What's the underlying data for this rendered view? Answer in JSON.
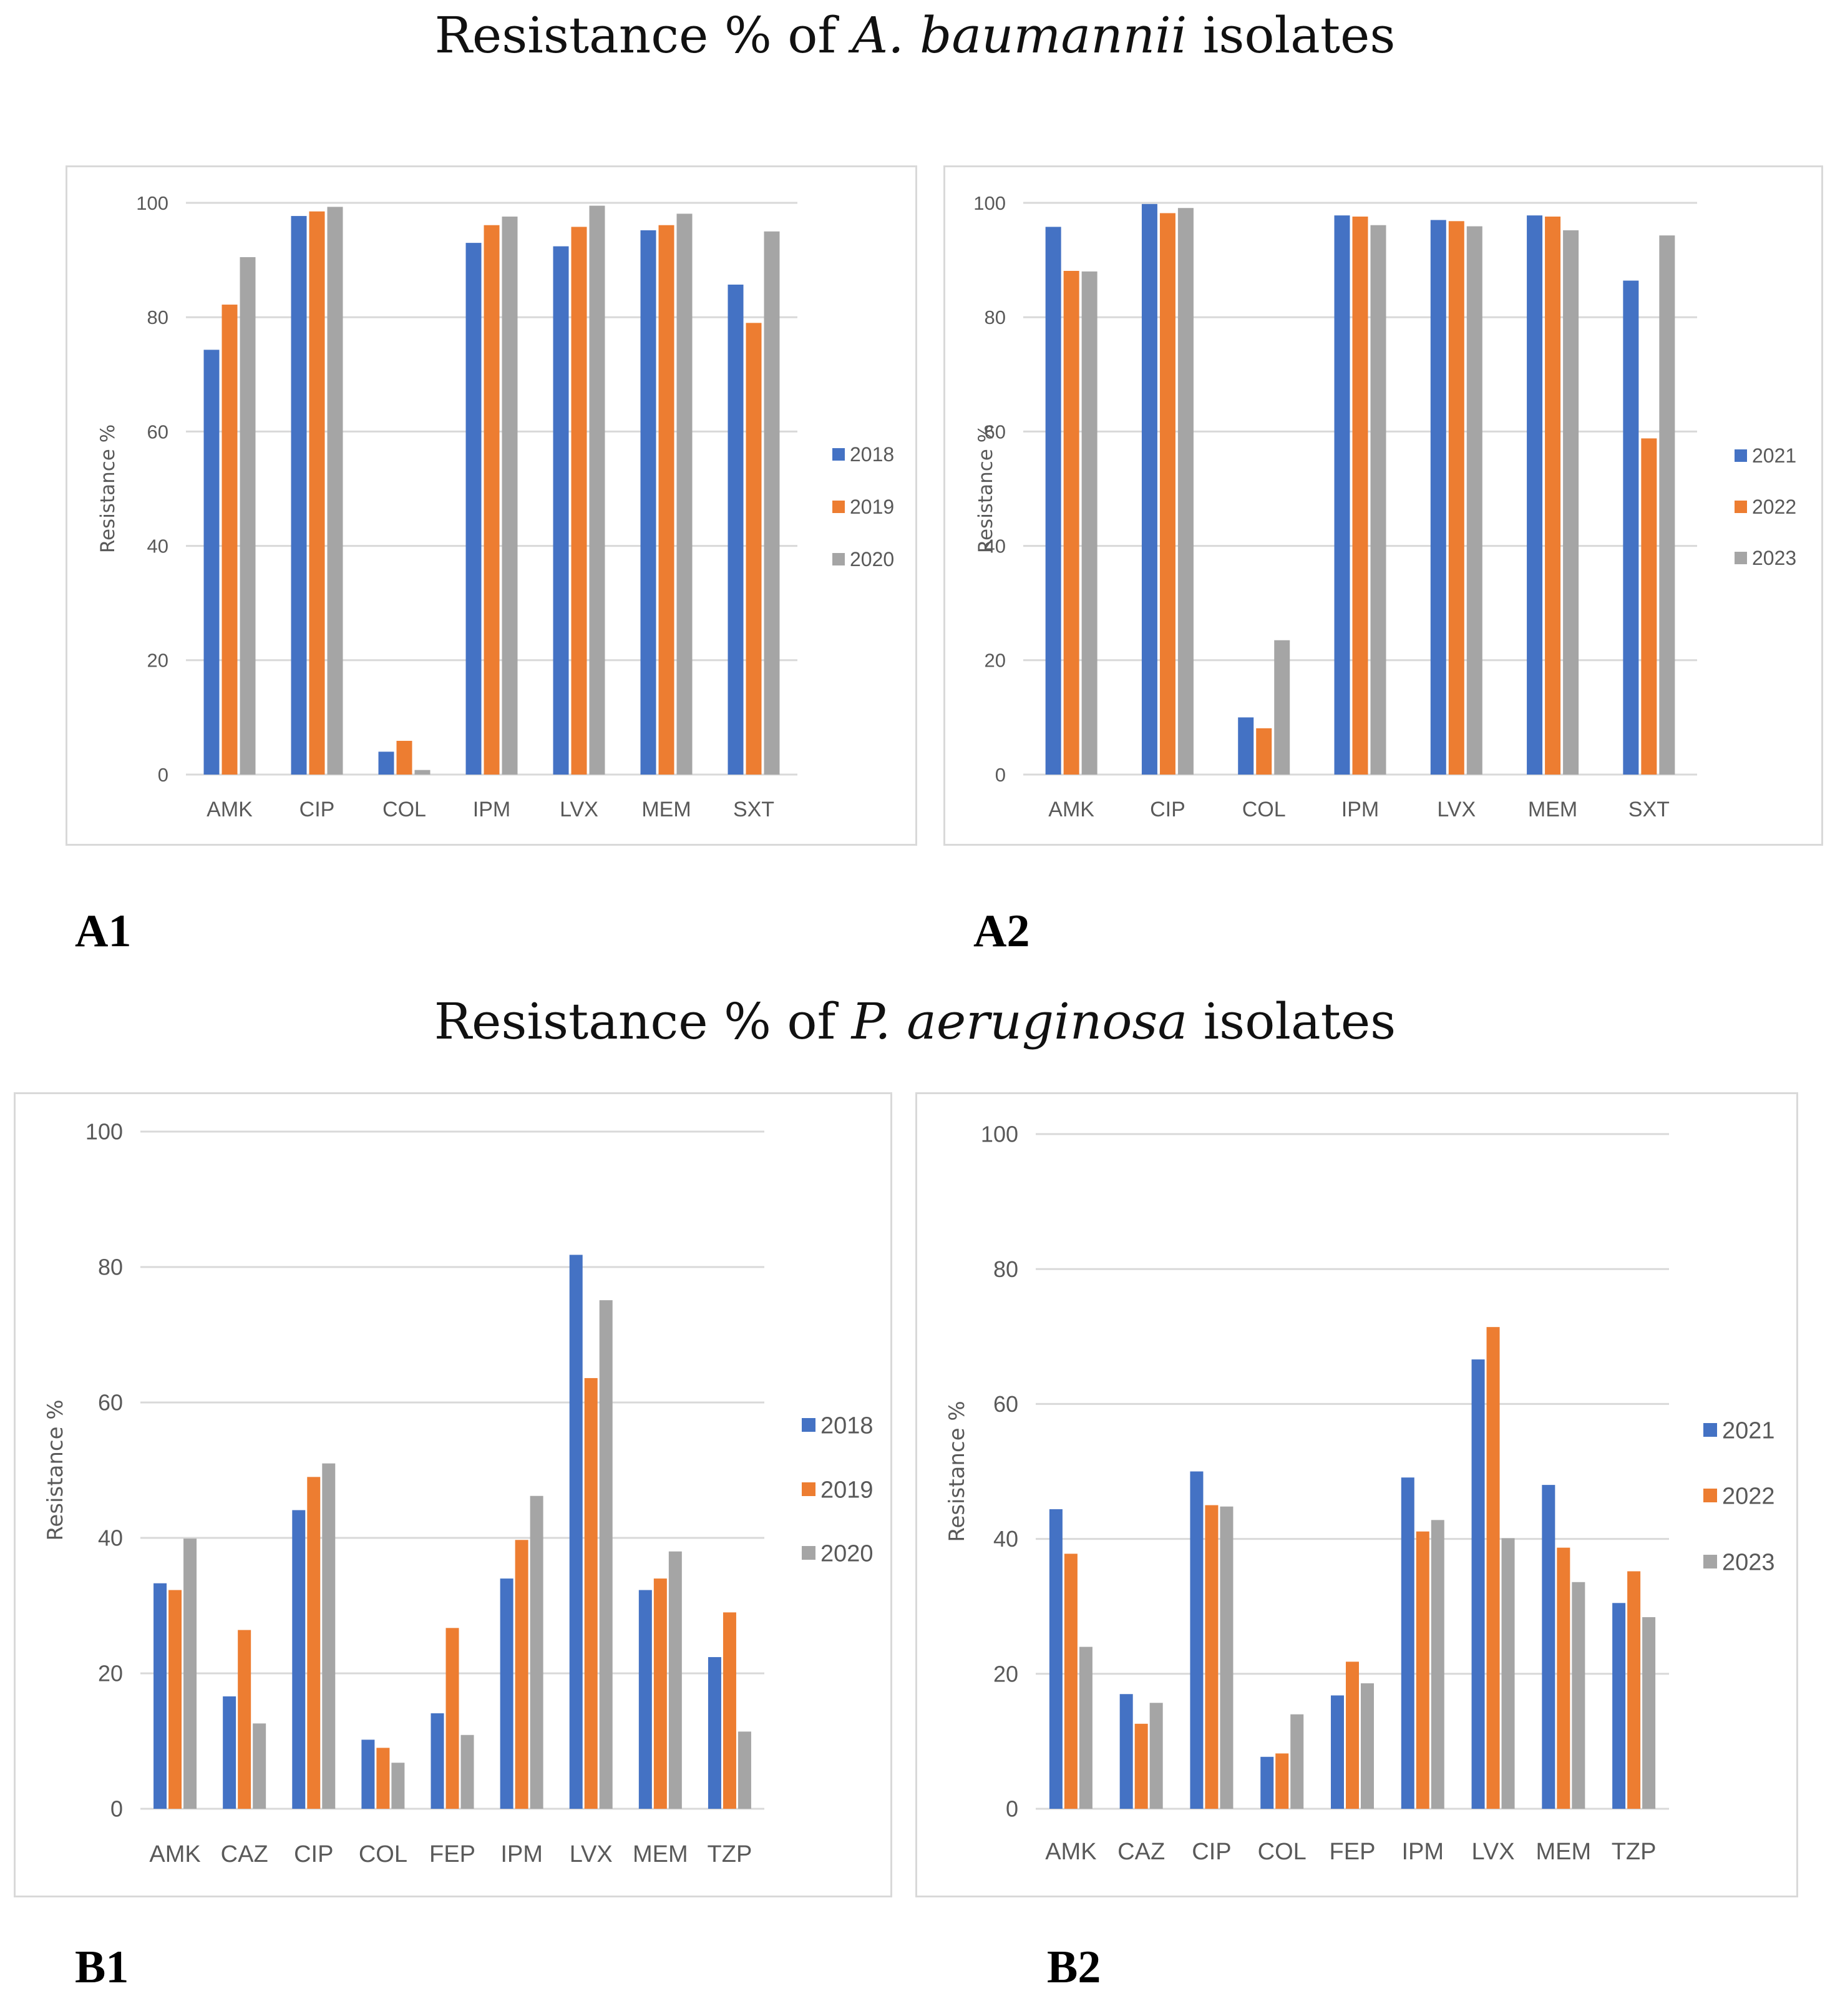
{
  "titles": {
    "a": {
      "prefix": "Resistance % of ",
      "species": "A. baumannii",
      "suffix": " isolates"
    },
    "b": {
      "prefix": "Resistance % of ",
      "species": "P. aeruginosa",
      "suffix": " isolates"
    }
  },
  "colors": {
    "series": [
      "#4472C4",
      "#ED7D31",
      "#A5A5A5"
    ],
    "grid": "#d9d9d9",
    "axis_text": "#595959"
  },
  "chart_data": [
    {
      "id": "A1",
      "panel_label": "A1",
      "type": "bar",
      "ylabel": "Resistance %",
      "ylim": [
        0,
        100
      ],
      "yticks": [
        0,
        20,
        40,
        60,
        80,
        100
      ],
      "legend_position": "right",
      "categories": [
        "AMK",
        "CIP",
        "COL",
        "IPM",
        "LVX",
        "MEM",
        "SXT"
      ],
      "series": [
        {
          "name": "2018",
          "values": [
            74.3,
            97.7,
            4.0,
            93.0,
            92.4,
            95.2,
            85.7
          ]
        },
        {
          "name": "2019",
          "values": [
            82.2,
            98.5,
            5.9,
            96.1,
            95.8,
            96.1,
            79.0
          ]
        },
        {
          "name": "2020",
          "values": [
            90.5,
            99.3,
            0.8,
            97.6,
            99.5,
            98.1,
            95.0
          ]
        }
      ]
    },
    {
      "id": "A2",
      "panel_label": "A2",
      "type": "bar",
      "ylabel": "Resistance %",
      "ylim": [
        0,
        100
      ],
      "yticks": [
        0,
        20,
        40,
        60,
        80,
        100
      ],
      "legend_position": "right",
      "categories": [
        "AMK",
        "CIP",
        "COL",
        "IPM",
        "LVX",
        "MEM",
        "SXT"
      ],
      "series": [
        {
          "name": "2021",
          "values": [
            95.8,
            99.8,
            10.0,
            97.8,
            97.0,
            97.8,
            86.4
          ]
        },
        {
          "name": "2022",
          "values": [
            88.1,
            98.2,
            8.1,
            97.6,
            96.8,
            97.6,
            58.8
          ]
        },
        {
          "name": "2023",
          "values": [
            88.0,
            99.1,
            23.5,
            96.1,
            95.9,
            95.2,
            94.3
          ]
        }
      ]
    },
    {
      "id": "B1",
      "panel_label": "B1",
      "type": "bar",
      "ylabel": "Resistance %",
      "ylim": [
        0,
        100
      ],
      "yticks": [
        0,
        20,
        40,
        60,
        80,
        100
      ],
      "legend_position": "right",
      "categories": [
        "AMK",
        "CAZ",
        "CIP",
        "COL",
        "FEP",
        "IPM",
        "LVX",
        "MEM",
        "TZP"
      ],
      "series": [
        {
          "name": "2018",
          "values": [
            33.3,
            16.6,
            44.1,
            10.2,
            14.1,
            34.0,
            81.8,
            32.3,
            22.4
          ]
        },
        {
          "name": "2019",
          "values": [
            32.3,
            26.4,
            49.0,
            9.0,
            26.7,
            39.7,
            63.6,
            34.0,
            29.0
          ]
        },
        {
          "name": "2020",
          "values": [
            39.9,
            12.6,
            51.0,
            6.8,
            10.9,
            46.2,
            75.1,
            38.0,
            11.4
          ]
        }
      ]
    },
    {
      "id": "B2",
      "panel_label": "B2",
      "type": "bar",
      "ylabel": "Resistance %",
      "ylim": [
        0,
        100
      ],
      "yticks": [
        0,
        20,
        40,
        60,
        80,
        100
      ],
      "legend_position": "right",
      "categories": [
        "AMK",
        "CAZ",
        "CIP",
        "COL",
        "FEP",
        "IPM",
        "LVX",
        "MEM",
        "TZP"
      ],
      "series": [
        {
          "name": "2021",
          "values": [
            44.4,
            17.0,
            50.0,
            7.7,
            16.8,
            49.1,
            66.6,
            48.0,
            30.5
          ]
        },
        {
          "name": "2022",
          "values": [
            37.8,
            12.6,
            45.0,
            8.2,
            21.8,
            41.1,
            71.4,
            38.7,
            35.2
          ]
        },
        {
          "name": "2023",
          "values": [
            24.0,
            15.7,
            44.8,
            14.0,
            18.6,
            42.8,
            40.1,
            33.6,
            28.4
          ]
        }
      ]
    }
  ]
}
